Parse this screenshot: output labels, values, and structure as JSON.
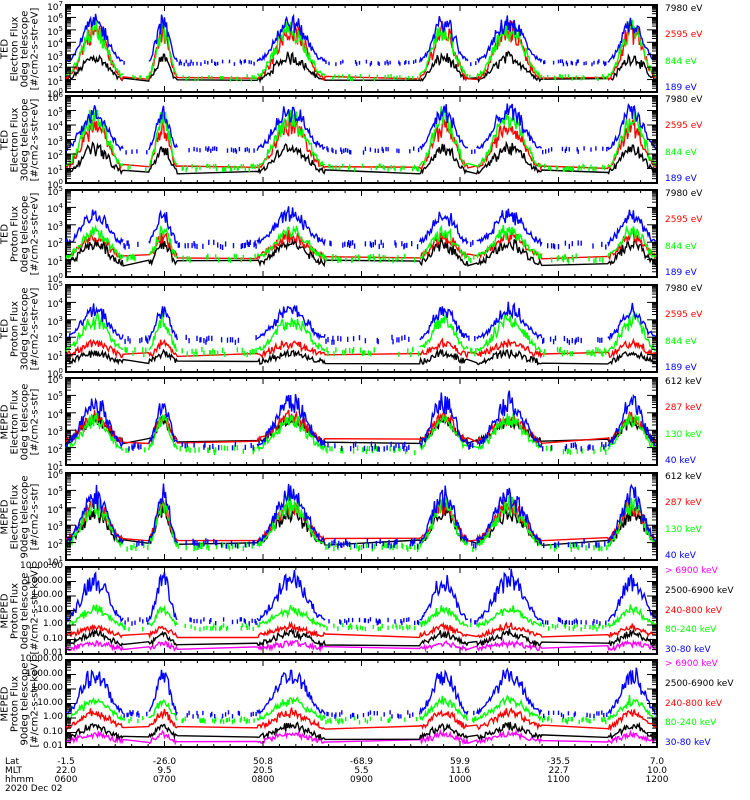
{
  "chart_data": {
    "type": "line",
    "date": "2020 Dec 02",
    "x_axis": {
      "rows": [
        {
          "name": "Lat",
          "ticks": [
            "-1.5",
            "-26.0",
            "50.8",
            "-68.9",
            "59.9",
            "-35.5",
            "7.0"
          ]
        },
        {
          "name": "MLT",
          "ticks": [
            "22.0",
            "9.5",
            "20.5",
            "5.5",
            "11.6",
            "22.7",
            "10.0"
          ]
        },
        {
          "name": "hhmm",
          "ticks": [
            "0600",
            "0700",
            "0800",
            "0900",
            "1000",
            "1100",
            "1200"
          ]
        }
      ],
      "range_hhmm": [
        "0600",
        "1200"
      ]
    },
    "panels": [
      {
        "id": "ted-electron-0deg",
        "ylabel": [
          "TED",
          "Electron Flux",
          "0deg telescope",
          "[#/cm2-s-str-eV]"
        ],
        "scale": "log",
        "ylim": [
          1,
          10000000
        ],
        "yticks": [
          "10^0",
          "10^1",
          "10^2",
          "10^3",
          "10^4",
          "10^5",
          "10^6",
          "10^7"
        ],
        "series": [
          {
            "name": "7980 eV",
            "color": "#000000",
            "baseline": 1.0,
            "peak": 3.2
          },
          {
            "name": "2595 eV",
            "color": "#ff0000",
            "baseline": 1.1,
            "peak": 5.8
          },
          {
            "name": "844 eV",
            "color": "#00ff00",
            "baseline": 1.3,
            "peak": 5.9
          },
          {
            "name": "189 eV",
            "color": "#0000ff",
            "baseline": 2.5,
            "peak": 6.3
          }
        ]
      },
      {
        "id": "ted-electron-30deg",
        "ylabel": [
          "TED",
          "Electron Flux",
          "30deg telescope",
          "[#/cm2-s-str-eV]"
        ],
        "scale": "log",
        "ylim": [
          1,
          1000000
        ],
        "yticks": [
          "10^0",
          "10^1",
          "10^2",
          "10^3",
          "10^4",
          "10^5",
          "10^6"
        ],
        "series": [
          {
            "name": "7980 eV",
            "color": "#000000",
            "baseline": 0.8,
            "peak": 2.8
          },
          {
            "name": "2595 eV",
            "color": "#ff0000",
            "baseline": 1.1,
            "peak": 4.6
          },
          {
            "name": "844 eV",
            "color": "#00ff00",
            "baseline": 1.2,
            "peak": 5.3
          },
          {
            "name": "189 eV",
            "color": "#0000ff",
            "baseline": 2.4,
            "peak": 5.5
          }
        ]
      },
      {
        "id": "ted-proton-0deg",
        "ylabel": [
          "TED",
          "Proton Flux",
          "0deg telescope",
          "[#/cm2-s-str-eV]"
        ],
        "scale": "log",
        "ylim": [
          1,
          100000
        ],
        "yticks": [
          "10^0",
          "10^1",
          "10^2",
          "10^3",
          "10^4",
          "10^5"
        ],
        "series": [
          {
            "name": "7980 eV",
            "color": "#000000",
            "baseline": 0.8,
            "peak": 2.2
          },
          {
            "name": "2595 eV",
            "color": "#ff0000",
            "baseline": 1.2,
            "peak": 2.6
          },
          {
            "name": "844 eV",
            "color": "#00ff00",
            "baseline": 1.2,
            "peak": 3.0
          },
          {
            "name": "189 eV",
            "color": "#0000ff",
            "baseline": 2.0,
            "peak": 4.0
          }
        ]
      },
      {
        "id": "ted-proton-30deg",
        "ylabel": [
          "TED",
          "Proton Flux",
          "30deg telescope",
          "[#/cm2-s-str-eV]"
        ],
        "scale": "log",
        "ylim": [
          1,
          100000
        ],
        "yticks": [
          "10^0",
          "10^1",
          "10^2",
          "10^3",
          "10^4",
          "10^5"
        ],
        "series": [
          {
            "name": "7980 eV",
            "color": "#000000",
            "baseline": 0.6,
            "peak": 1.2
          },
          {
            "name": "2595 eV",
            "color": "#ff0000",
            "baseline": 1.0,
            "peak": 1.8
          },
          {
            "name": "844 eV",
            "color": "#00ff00",
            "baseline": 1.3,
            "peak": 3.4
          },
          {
            "name": "189 eV",
            "color": "#0000ff",
            "baseline": 2.0,
            "peak": 3.9
          }
        ]
      },
      {
        "id": "meped-electron-0deg",
        "ylabel": [
          "MEPED",
          "Electron Flux",
          "0deg telescope",
          "[#/cm2-s-str]"
        ],
        "scale": "log",
        "ylim": [
          10,
          1000000
        ],
        "yticks": [
          "10^1",
          "10^2",
          "10^3",
          "10^4",
          "10^5",
          "10^6"
        ],
        "series": [
          {
            "name": "612 keV",
            "color": "#000000",
            "baseline": 2.4,
            "peak": 3.8
          },
          {
            "name": "287 keV",
            "color": "#ff0000",
            "baseline": 2.4,
            "peak": 4.1
          },
          {
            "name": "130 keV",
            "color": "#00ff00",
            "baseline": 2.0,
            "peak": 4.0
          },
          {
            "name": "40 keV",
            "color": "#0000ff",
            "baseline": 2.2,
            "peak": 5.2
          }
        ]
      },
      {
        "id": "meped-electron-90deg",
        "ylabel": [
          "MEPED",
          "Electron Flux",
          "90deg telescope",
          "[#/cm2-s-str]"
        ],
        "scale": "log",
        "ylim": [
          10,
          1000000
        ],
        "yticks": [
          "10^1",
          "10^2",
          "10^3",
          "10^4",
          "10^5",
          "10^6"
        ],
        "series": [
          {
            "name": "612 keV",
            "color": "#000000",
            "baseline": 2.0,
            "peak": 4.1
          },
          {
            "name": "287 keV",
            "color": "#ff0000",
            "baseline": 2.2,
            "peak": 4.6
          },
          {
            "name": "130 keV",
            "color": "#00ff00",
            "baseline": 1.9,
            "peak": 4.7
          },
          {
            "name": "40 keV",
            "color": "#0000ff",
            "baseline": 2.1,
            "peak": 5.3
          }
        ]
      },
      {
        "id": "meped-proton-0deg",
        "ylabel": [
          "MEPED",
          "Proton Flux",
          "0deg telescope",
          "[#/cm2-s-str-keV]"
        ],
        "scale": "log",
        "ylim": [
          0.01,
          10000
        ],
        "yticks": [
          "0.01",
          "0.10",
          "1.00",
          "10.00",
          "100.00",
          "1000.00",
          "10000.00"
        ],
        "series": [
          {
            "name": "> 6900 keV",
            "color": "#ff00ff",
            "baseline": -1.6,
            "peak": -1.2
          },
          {
            "name": "2500-6900 keV",
            "color": "#000000",
            "baseline": -1.3,
            "peak": -0.4
          },
          {
            "name": "240-800 keV",
            "color": "#ff0000",
            "baseline": -0.7,
            "peak": 0.0
          },
          {
            "name": "80-240 keV",
            "color": "#00ff00",
            "baseline": 0.0,
            "peak": 1.3
          },
          {
            "name": "30-80 keV",
            "color": "#0000ff",
            "baseline": 0.4,
            "peak": 3.8
          }
        ]
      },
      {
        "id": "meped-proton-90deg",
        "ylabel": [
          "MEPED",
          "Proton Flux",
          "90deg telescope",
          "[#/cm2-s-str-keV]"
        ],
        "scale": "log",
        "ylim": [
          0.01,
          10000
        ],
        "yticks": [
          "0.01",
          "0.10",
          "1.00",
          "10.00",
          "100.00",
          "1000.00",
          "10000.00"
        ],
        "series": [
          {
            "name": "> 6900 keV",
            "color": "#ff00ff",
            "baseline": -1.6,
            "peak": -1.0
          },
          {
            "name": "2500-6900 keV",
            "color": "#000000",
            "baseline": -1.3,
            "peak": -0.4
          },
          {
            "name": "240-800 keV",
            "color": "#ff0000",
            "baseline": -0.6,
            "peak": 0.6
          },
          {
            "name": "80-240 keV",
            "color": "#00ff00",
            "baseline": 0.0,
            "peak": 1.5
          },
          {
            "name": "30-80 keV",
            "color": "#0000ff",
            "baseline": 0.4,
            "peak": 3.6
          }
        ]
      }
    ],
    "passes_hhmm": [
      [
        "0600",
        "0635"
      ],
      [
        "0650",
        "0708"
      ],
      [
        "0756",
        "0838"
      ],
      [
        "0935",
        "1005"
      ],
      [
        "1010",
        "1050"
      ],
      [
        "1130",
        "1200"
      ]
    ]
  }
}
